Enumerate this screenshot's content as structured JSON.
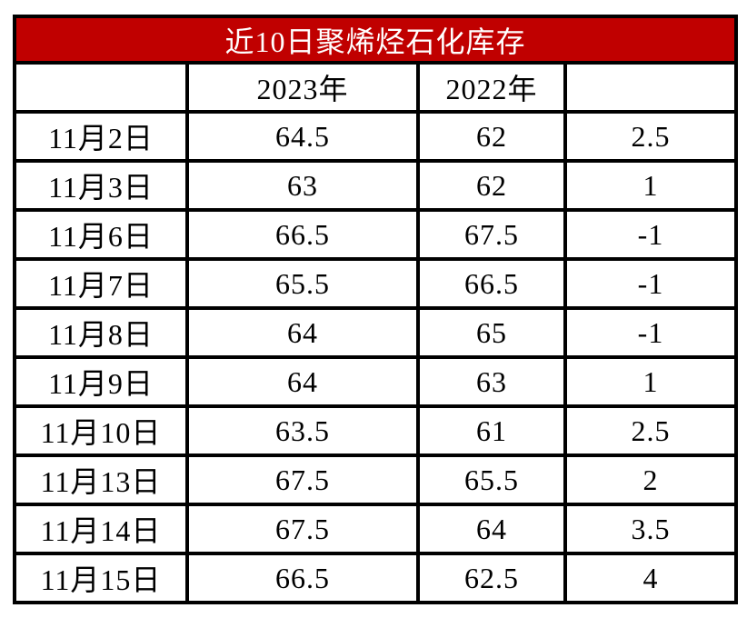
{
  "chart_data": {
    "type": "table",
    "title": "近10日聚烯烃石化库存",
    "columns": [
      "",
      "2023年",
      "2022年",
      ""
    ],
    "rows": [
      [
        "11月2日",
        "64.5",
        "62",
        "2.5"
      ],
      [
        "11月3日",
        "63",
        "62",
        "1"
      ],
      [
        "11月6日",
        "66.5",
        "67.5",
        "-1"
      ],
      [
        "11月7日",
        "65.5",
        "66.5",
        "-1"
      ],
      [
        "11月8日",
        "64",
        "65",
        "-1"
      ],
      [
        "11月9日",
        "64",
        "63",
        "1"
      ],
      [
        "11月10日",
        "63.5",
        "61",
        "2.5"
      ],
      [
        "11月13日",
        "67.5",
        "65.5",
        "2"
      ],
      [
        "11月14日",
        "67.5",
        "64",
        "3.5"
      ],
      [
        "11月15日",
        "66.5",
        "62.5",
        "4"
      ]
    ],
    "layout": {
      "grid": "on",
      "title_position": "top-banner"
    }
  },
  "colors": {
    "title_bg": "#c00000",
    "title_text": "#ffffff",
    "border": "#000000",
    "cell_bg": "#ffffff",
    "cell_text": "#000000"
  }
}
